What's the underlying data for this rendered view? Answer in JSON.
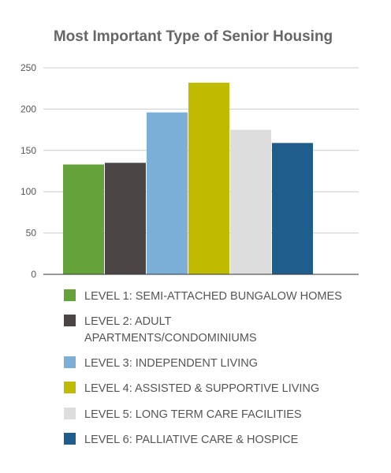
{
  "chart_data": {
    "type": "bar",
    "title": "Most Important Type of Senior Housing",
    "xlabel": "",
    "ylabel": "",
    "ylim": [
      0,
      250
    ],
    "yticks": [
      0,
      50,
      100,
      150,
      200,
      250
    ],
    "grid": true,
    "legend_position": "bottom",
    "series": [
      {
        "name": "LEVEL 1: SEMI-ATTACHED BUNGALOW HOMES",
        "legend_lines": [
          "LEVEL 1: SEMI-ATTACHED BUNGALOW HOMES"
        ],
        "value": 133,
        "color": "#66a23a"
      },
      {
        "name": "LEVEL 2: ADULT APARTMENTS/CONDOMINIUMS",
        "legend_lines": [
          "LEVEL 2: ADULT",
          "APARTMENTS/CONDOMINIUMS"
        ],
        "value": 135,
        "color": "#4b4645"
      },
      {
        "name": "LEVEL 3: INDEPENDENT LIVING",
        "legend_lines": [
          "LEVEL 3: INDEPENDENT LIVING"
        ],
        "value": 196,
        "color": "#7bafd8"
      },
      {
        "name": "LEVEL 4: ASSISTED & SUPPORTIVE LIVING",
        "legend_lines": [
          "LEVEL 4: ASSISTED & SUPPORTIVE LIVING"
        ],
        "value": 232,
        "color": "#bfbb00"
      },
      {
        "name": "LEVEL 5: LONG TERM CARE FACILITIES",
        "legend_lines": [
          "LEVEL 5:  LONG TERM CARE FACILITIES"
        ],
        "value": 175,
        "color": "#dddddd"
      },
      {
        "name": "LEVEL 6: PALLIATIVE CARE & HOSPICE",
        "legend_lines": [
          "LEVEL 6:  PALLIATIVE CARE & HOSPICE"
        ],
        "value": 159,
        "color": "#1f5e8c"
      }
    ]
  }
}
